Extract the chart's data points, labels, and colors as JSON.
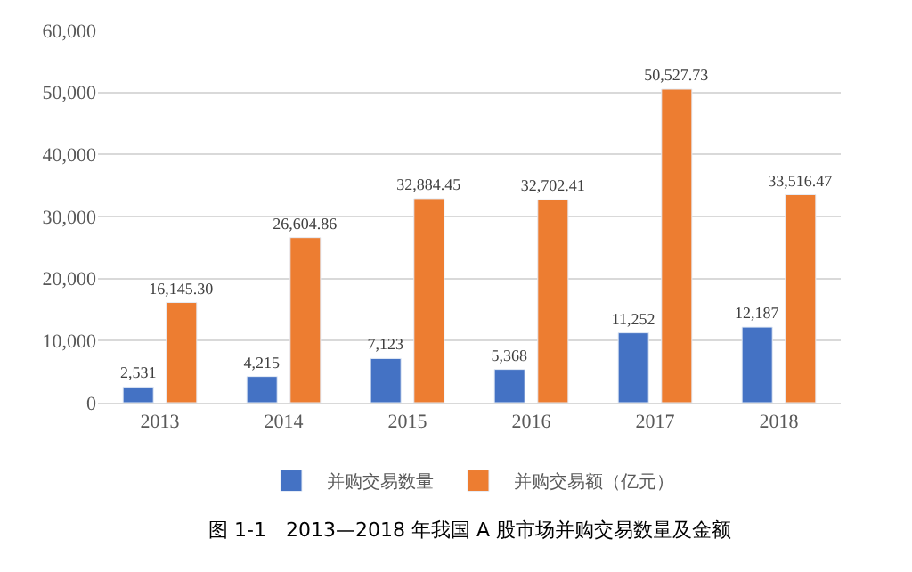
{
  "chart_data": {
    "type": "bar",
    "categories": [
      "2013",
      "2014",
      "2015",
      "2016",
      "2017",
      "2018"
    ],
    "series": [
      {
        "name": "并购交易数量",
        "color": "#4472c4",
        "values": [
          2531,
          4215,
          7123,
          5368,
          11252,
          12187
        ],
        "value_labels": [
          "2,531",
          "4,215",
          "7,123",
          "5,368",
          "11,252",
          "12,187"
        ]
      },
      {
        "name": "并购交易额（亿元）",
        "color": "#ed7d31",
        "values": [
          16145.3,
          26604.86,
          32884.45,
          32702.41,
          50527.73,
          33516.47
        ],
        "value_labels": [
          "16,145.30",
          "26,604.86",
          "32,884.45",
          "32,702.41",
          "50,527.73",
          "33,516.47"
        ]
      }
    ],
    "ylim": [
      0,
      60000
    ],
    "yticks": [
      {
        "value": 0,
        "label": "0"
      },
      {
        "value": 10000,
        "label": "10,000"
      },
      {
        "value": 20000,
        "label": "20,000"
      },
      {
        "value": 30000,
        "label": "30,000"
      },
      {
        "value": 40000,
        "label": "40,000"
      },
      {
        "value": 50000,
        "label": "50,000"
      },
      {
        "value": 60000,
        "label": "60,000"
      }
    ],
    "grid": "y",
    "legend": "bottom",
    "annotations": [
      "图 1-1　2013—2018 年我国 A 股市场并购交易数量及金额"
    ]
  }
}
